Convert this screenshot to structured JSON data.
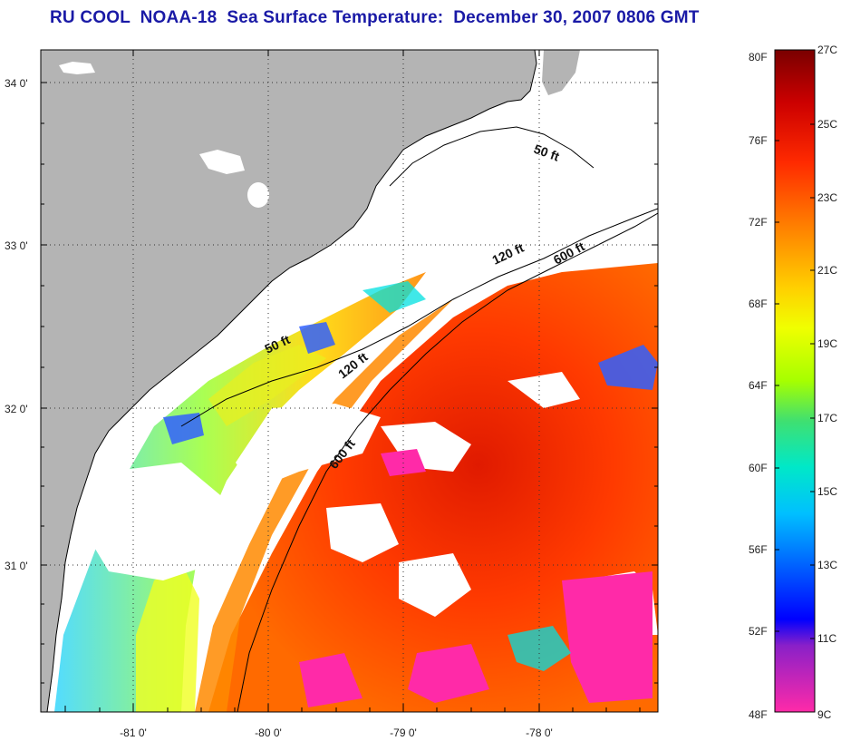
{
  "title": "RU COOL  NOAA-18  Sea Surface Temperature:  December 30, 2007 0806 GMT",
  "map": {
    "lat_labels": [
      "34 0'",
      "33 0'",
      "32 0'",
      "31 0'"
    ],
    "lon_labels": [
      "-81 0'",
      "-80 0'",
      "-79 0'",
      "-78 0'"
    ],
    "depth_contours": [
      "50 ft",
      "120 ft",
      "600 ft",
      "50 ft",
      "120 ft",
      "600 ft"
    ],
    "colors": {
      "land": "#b4b4b4",
      "cloud": "#ffffff",
      "coast": "#000000"
    }
  },
  "colorbar": {
    "f_labels": [
      "80F",
      "76F",
      "72F",
      "68F",
      "64F",
      "60F",
      "56F",
      "52F",
      "48F"
    ],
    "c_labels": [
      "27C",
      "25C",
      "23C",
      "21C",
      "19C",
      "17C",
      "15C",
      "13C",
      "11C",
      "9C"
    ],
    "stops": [
      "#7a0000",
      "#cc0000",
      "#ff2a00",
      "#ff7a00",
      "#ffd000",
      "#f0ff00",
      "#a6ff00",
      "#40e070",
      "#00e8c8",
      "#00c0ff",
      "#0060ff",
      "#0000ff",
      "#8a20c8",
      "#ff2aa8"
    ]
  }
}
